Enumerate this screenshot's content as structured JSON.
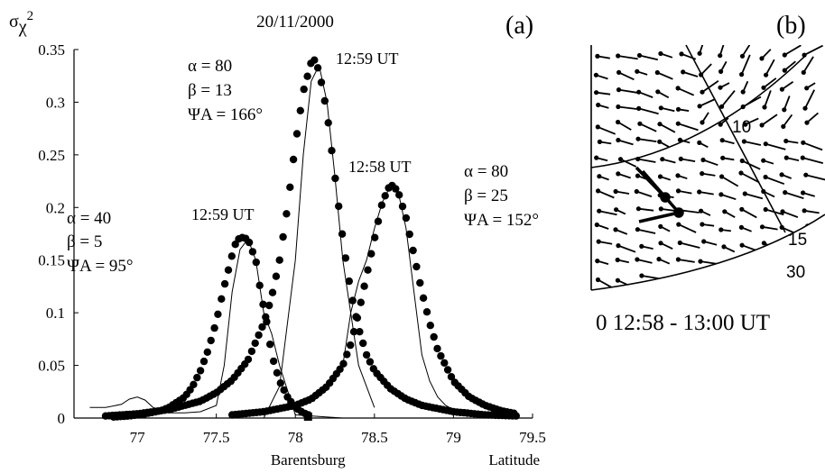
{
  "chart_data": [
    {
      "type": "scatter",
      "panel_label": "(a)",
      "title": "20/11/2000",
      "ylabel_base": "σ",
      "ylabel_sub": "χ",
      "ylabel_sup": "2",
      "xlabel": "Latitude",
      "x_marker_label": "Barentsburg",
      "barentsburg_lat": 78.08,
      "xlim": [
        76.6,
        79.5
      ],
      "ylim": [
        0,
        0.35
      ],
      "x_ticks": [
        77,
        77.5,
        78,
        78.5,
        79,
        79.5
      ],
      "x_tick_labels": [
        "77",
        "77.5",
        "78",
        "78.5",
        "79",
        "79.5"
      ],
      "y_ticks": [
        0,
        0.05,
        0.1,
        0.15,
        0.2,
        0.25,
        0.3,
        0.35
      ],
      "y_tick_labels": [
        "0",
        "0.05",
        "0.1",
        "0.15",
        "0.2",
        "0.25",
        "0.3",
        "0.35"
      ],
      "series": [
        {
          "x": [
            76.85,
            76.95,
            77.05,
            77.15,
            77.2,
            77.3,
            77.35,
            77.4,
            77.45,
            77.5,
            77.55,
            77.6,
            77.62,
            77.65,
            77.7,
            77.75,
            77.78,
            77.82,
            77.85,
            77.9,
            77.95,
            78.0,
            78.05,
            78.1
          ],
          "y": [
            0.001,
            0.002,
            0.004,
            0.007,
            0.01,
            0.02,
            0.03,
            0.045,
            0.065,
            0.092,
            0.125,
            0.155,
            0.165,
            0.172,
            0.17,
            0.15,
            0.12,
            0.09,
            0.06,
            0.035,
            0.02,
            0.01,
            0.005,
            0.002
          ],
          "marker": "dot"
        },
        {
          "x": [
            76.8,
            77.0,
            77.2,
            77.4,
            77.5,
            77.6,
            77.7,
            77.8,
            77.85,
            77.9,
            77.95,
            78.0,
            78.05,
            78.1,
            78.12,
            78.15,
            78.2,
            78.25,
            78.3,
            78.35,
            78.4,
            78.45,
            78.5,
            78.6,
            78.7,
            78.8,
            79.0,
            79.2,
            79.4
          ],
          "y": [
            0.002,
            0.004,
            0.008,
            0.016,
            0.024,
            0.036,
            0.055,
            0.09,
            0.115,
            0.15,
            0.2,
            0.26,
            0.31,
            0.338,
            0.34,
            0.33,
            0.29,
            0.23,
            0.17,
            0.12,
            0.085,
            0.06,
            0.045,
            0.028,
            0.018,
            0.012,
            0.006,
            0.003,
            0.002
          ],
          "marker": "dot"
        },
        {
          "x": [
            77.6,
            77.8,
            78.0,
            78.1,
            78.2,
            78.3,
            78.35,
            78.4,
            78.45,
            78.5,
            78.55,
            78.6,
            78.62,
            78.65,
            78.7,
            78.75,
            78.8,
            78.85,
            78.9,
            79.0,
            79.1,
            79.2,
            79.3,
            79.4
          ],
          "y": [
            0.003,
            0.006,
            0.012,
            0.018,
            0.03,
            0.05,
            0.07,
            0.1,
            0.135,
            0.17,
            0.205,
            0.222,
            0.22,
            0.215,
            0.19,
            0.155,
            0.12,
            0.09,
            0.065,
            0.035,
            0.02,
            0.012,
            0.007,
            0.004
          ],
          "marker": "dot"
        },
        {
          "x": [
            76.7,
            76.8,
            76.9,
            76.95,
            77.0,
            77.05,
            77.1,
            77.15,
            77.2,
            77.3,
            77.4,
            77.5,
            77.55,
            77.6,
            77.65,
            77.7,
            77.75,
            77.8,
            77.85,
            77.9,
            78.0,
            78.3,
            78.6,
            78.8,
            78.9,
            79.0
          ],
          "y": [
            0.01,
            0.01,
            0.013,
            0.018,
            0.02,
            0.017,
            0.01,
            0.008,
            0.005,
            0.005,
            0.006,
            0.012,
            0.05,
            0.12,
            0.16,
            0.17,
            0.15,
            0.1,
            0.08,
            0.05,
            0.003,
            0.0,
            0.0,
            0.0,
            0.0,
            0.0
          ],
          "marker": "thin-line"
        },
        {
          "x": [
            77.8,
            77.9,
            78.0,
            78.05,
            78.1,
            78.15,
            78.2,
            78.25,
            78.3,
            78.4,
            78.5
          ],
          "y": [
            0.0,
            0.03,
            0.15,
            0.25,
            0.32,
            0.335,
            0.3,
            0.23,
            0.15,
            0.05,
            0.01
          ],
          "marker": "thin-line"
        },
        {
          "x": [
            78.3,
            78.35,
            78.4,
            78.45,
            78.5,
            78.55,
            78.6,
            78.65,
            78.7,
            78.75,
            78.8,
            78.85,
            78.9,
            78.95,
            79.0
          ],
          "y": [
            0.05,
            0.1,
            0.13,
            0.15,
            0.18,
            0.205,
            0.22,
            0.215,
            0.18,
            0.12,
            0.06,
            0.035,
            0.02,
            0.012,
            0.008
          ],
          "marker": "thin-line"
        }
      ],
      "annotations": [
        {
          "lines": [
            "α = 40",
            "β = 5",
            "ΨA = 95°"
          ]
        },
        {
          "lines": [
            "α = 80",
            "β = 13",
            "ΨA = 166°"
          ]
        },
        {
          "lines": [
            "α = 80",
            "β = 25",
            "ΨA = 152°"
          ]
        },
        {
          "lines": [
            "12:59 UT"
          ]
        },
        {
          "lines": [
            "12:59 UT"
          ]
        },
        {
          "lines": [
            "12:58 UT"
          ]
        }
      ]
    },
    {
      "type": "vector-map",
      "panel_label": "(b)",
      "contour_labels": [
        "10",
        "15",
        "30"
      ],
      "caption": "0 12:58 - 13:00 UT"
    }
  ]
}
